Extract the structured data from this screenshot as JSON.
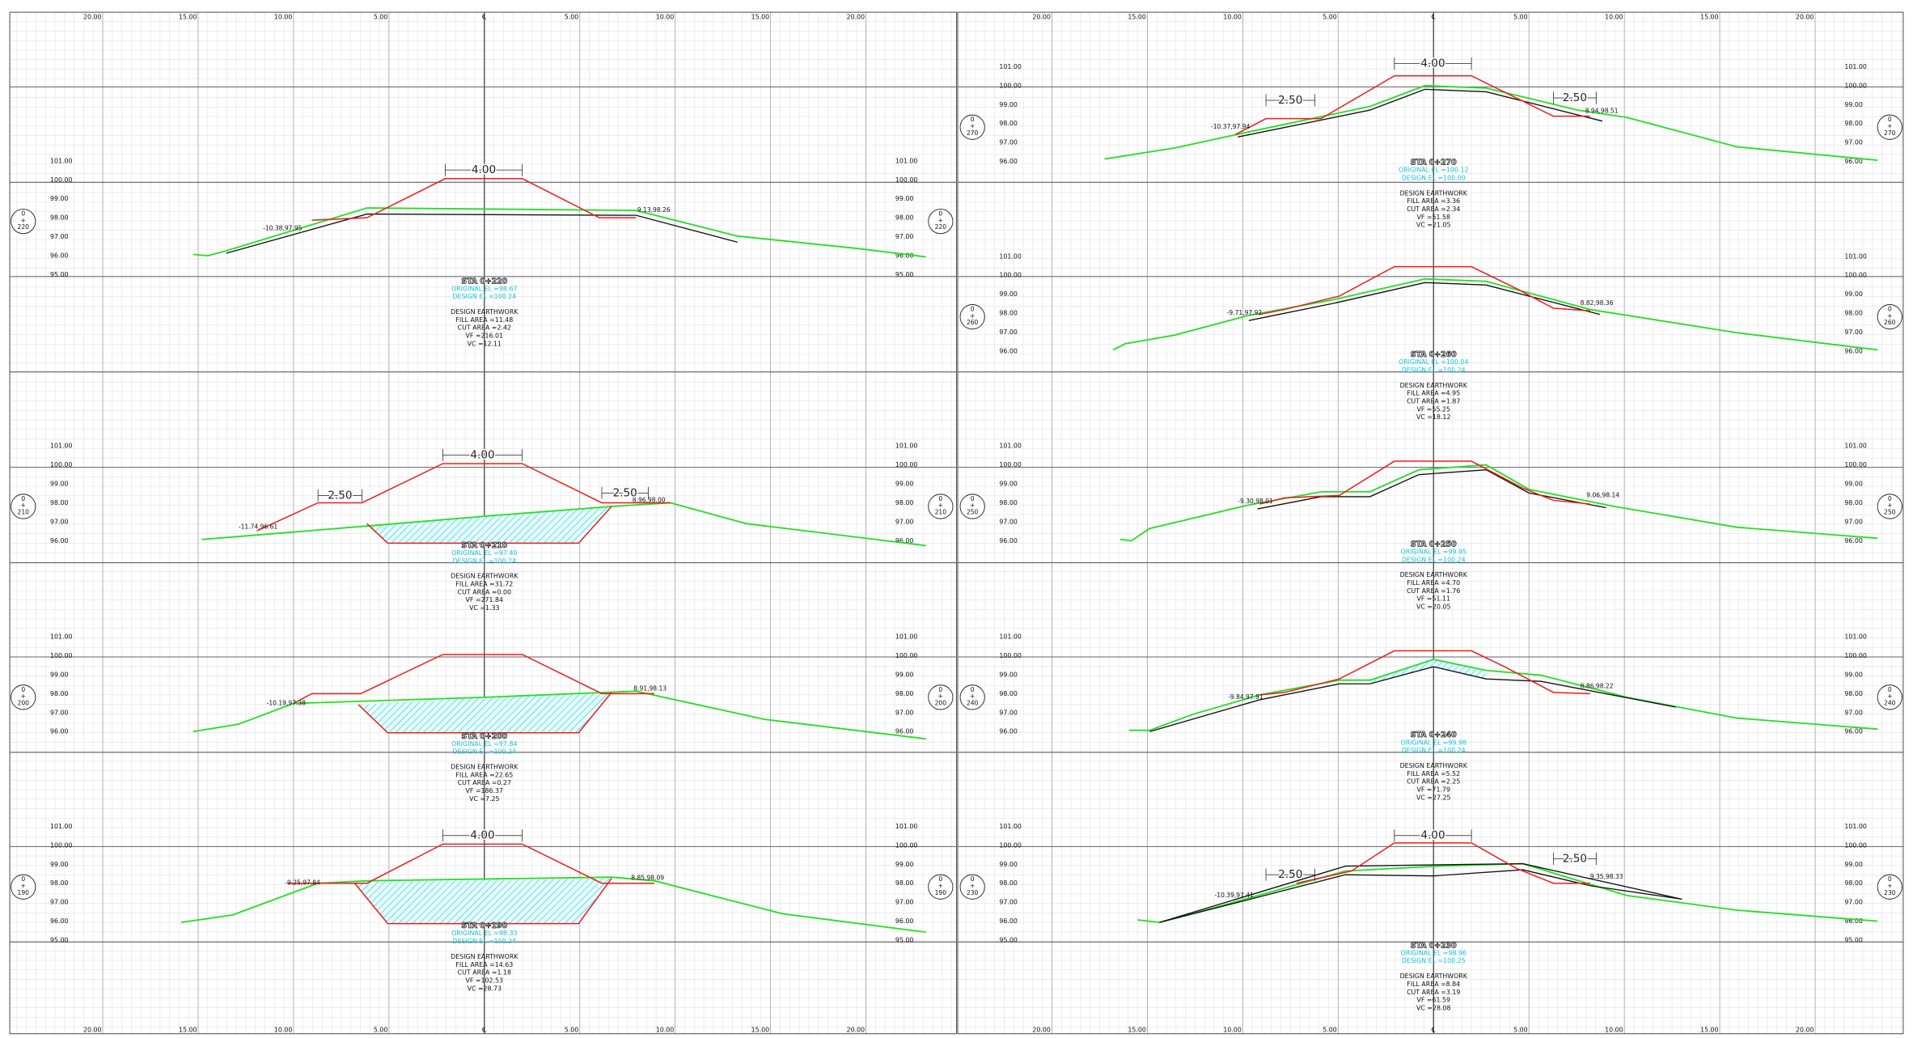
{
  "axis_labels": [
    "20.00",
    "15.00",
    "10.00",
    "5.00",
    "℄",
    "5.00",
    "10.00",
    "15.00",
    "20.00"
  ],
  "sections": [
    {
      "station": [
        "0",
        "+",
        "220"
      ],
      "elevations": [
        "101.00",
        "100.00",
        "99.00",
        "98.00",
        "97.00",
        "96.00",
        "95.00"
      ],
      "left_point": "-10.38,97.95",
      "right_point": "9.13,98.26",
      "sta": "STA 0+220",
      "original_el": "ORIGINAL EL =98.67",
      "design_el": "DESIGN EL =100.24",
      "earthwork": "DESIGN EARTHWORK",
      "fill_area": "FILL AREA =11.48",
      "cut_area": "CUT AREA =2.42",
      "vf": "VF =216.01",
      "vc": "VC =12.11",
      "dims": [
        "4.00"
      ]
    },
    {
      "station": [
        "0",
        "+",
        "210"
      ],
      "elevations": [
        "101.00",
        "100.00",
        "99.00",
        "98.00",
        "97.00",
        "96.00"
      ],
      "left_point": "-11.74,96.61",
      "right_point": "8.96,98.00",
      "sta": "STA 0+210",
      "original_el": "ORIGINAL EL =97.40",
      "design_el": "DESIGN EL =100.24",
      "earthwork": "DESIGN EARTHWORK",
      "fill_area": "FILL AREA =31.72",
      "cut_area": "CUT AREA =0.00",
      "vf": "VF =271.84",
      "vc": "VC =1.33",
      "dims": [
        "4.00",
        "2.50",
        "2.50"
      ]
    },
    {
      "station": [
        "0",
        "+",
        "200"
      ],
      "elevations": [
        "101.00",
        "100.00",
        "99.00",
        "98.00",
        "97.00",
        "96.00"
      ],
      "left_point": "-10.19,97.38",
      "right_point": "8.91,98.13",
      "sta": "STA 0+200",
      "original_el": "ORIGINAL EL =97.84",
      "design_el": "DESIGN EL =100.24",
      "earthwork": "DESIGN EARTHWORK",
      "fill_area": "FILL AREA =22.65",
      "cut_area": "CUT AREA =0.27",
      "vf": "VF =186.37",
      "vc": "VC =7.25",
      "dims": []
    },
    {
      "station": [
        "0",
        "+",
        "190"
      ],
      "elevations": [
        "101.00",
        "100.00",
        "99.00",
        "98.00",
        "97.00",
        "96.00",
        "95.00"
      ],
      "left_point": "-9.25,97.84",
      "right_point": "8.85,98.09",
      "sta": "STA 0+190",
      "original_el": "ORIGINAL EL =98.33",
      "design_el": "DESIGN EL =100.24",
      "earthwork": "DESIGN EARTHWORK",
      "fill_area": "FILL AREA =14.63",
      "cut_area": "CUT AREA =1.18",
      "vf": "VF =102.53",
      "vc": "VC =28.73",
      "dims": [
        "4.00"
      ]
    },
    {
      "station": [
        "0",
        "+",
        "270"
      ],
      "elevations": [
        "101.00",
        "100.00",
        "99.00",
        "98.00",
        "97.00",
        "96.00"
      ],
      "left_point": "-10.37,97.94",
      "right_point": "8.94,98.51",
      "sta": "STA 0+270",
      "original_el": "ORIGINAL EL =100.12",
      "design_el": "DESIGN EL =100.00",
      "earthwork": "DESIGN EARTHWORK",
      "fill_area": "FILL AREA =3.36",
      "cut_area": "CUT AREA =2.34",
      "vf": "VF =51.58",
      "vc": "VC =21.05",
      "dims": [
        "4.00",
        "2.50",
        "2.50"
      ]
    },
    {
      "station": [
        "0",
        "+",
        "260"
      ],
      "elevations": [
        "101.00",
        "100.00",
        "99.00",
        "98.00",
        "97.00",
        "96.00"
      ],
      "left_point": "-9.71,97.92",
      "right_point": "8.82,98.36",
      "sta": "STA 0+260",
      "original_el": "ORIGINAL EL =100.04",
      "design_el": "DESIGN EL =100.24",
      "earthwork": "DESIGN EARTHWORK",
      "fill_area": "FILL AREA =4.95",
      "cut_area": "CUT AREA =1.87",
      "vf": "VF =55.25",
      "vc": "VC =18.12",
      "dims": []
    },
    {
      "station": [
        "0",
        "+",
        "250"
      ],
      "elevations": [
        "101.00",
        "100.00",
        "99.00",
        "98.00",
        "97.00",
        "96.00"
      ],
      "left_point": "-9.30,98.01",
      "right_point": "9.06,98.14",
      "sta": "STA 0+250",
      "original_el": "ORIGINAL EL =99.95",
      "design_el": "DESIGN EL =100.24",
      "earthwork": "DESIGN EARTHWORK",
      "fill_area": "FILL AREA =4.70",
      "cut_area": "CUT AREA =1.76",
      "vf": "VF =51.11",
      "vc": "VC =20.05",
      "dims": []
    },
    {
      "station": [
        "0",
        "+",
        "240"
      ],
      "elevations": [
        "101.00",
        "100.00",
        "99.00",
        "98.00",
        "97.00",
        "96.00"
      ],
      "left_point": "-9.84,97.91",
      "right_point": "8.86,98.22",
      "sta": "STA 0+240",
      "original_el": "ORIGINAL EL =99.98",
      "design_el": "DESIGN EL =100.24",
      "earthwork": "DESIGN EARTHWORK",
      "fill_area": "FILL AREA =5.52",
      "cut_area": "CUT AREA =2.25",
      "vf": "VF =71.79",
      "vc": "VC =27.25",
      "dims": []
    },
    {
      "station": [
        "0",
        "+",
        "230"
      ],
      "elevations": [
        "101.00",
        "100.00",
        "99.00",
        "98.00",
        "97.00",
        "96.00",
        "95.00"
      ],
      "left_point": "-10.39,97.41",
      "right_point": "9.35,98.33",
      "sta": "STA 0+230",
      "original_el": "ORIGINAL EL =98.96",
      "design_el": "DESIGN EL =100.25",
      "earthwork": "DESIGN EARTHWORK",
      "fill_area": "FILL AREA =8.84",
      "cut_area": "CUT AREA =3.19",
      "vf": "VF =61.59",
      "vc": "VC =28.08",
      "dims": [
        "4.00",
        "2.50",
        "2.50"
      ]
    }
  ]
}
